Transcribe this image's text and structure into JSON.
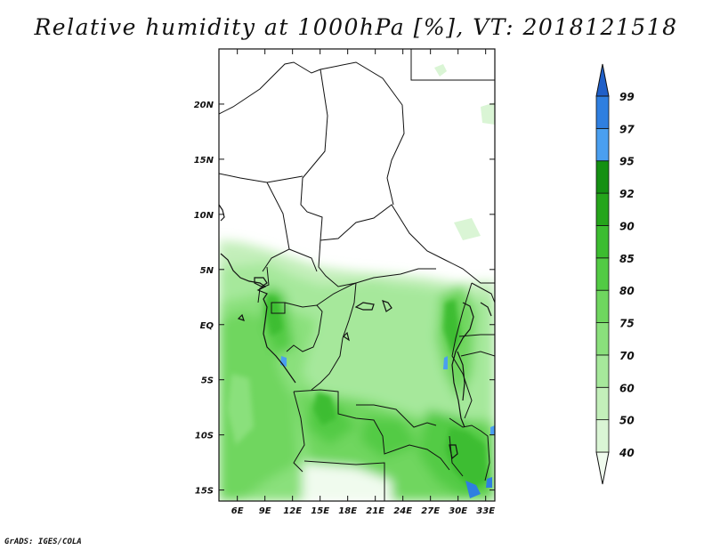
{
  "title": "Relative humidity at 1000hPa [%], VT: 2018121518",
  "credit": "GrADS: IGES/COLA",
  "map": {
    "variable": "Relative humidity",
    "level": "1000hPa",
    "units": "%",
    "valid_time": "2018121518",
    "lon_range": [
      4,
      34
    ],
    "lat_range": [
      -16,
      25
    ],
    "lon_ticks": [
      "6E",
      "9E",
      "12E",
      "15E",
      "18E",
      "21E",
      "24E",
      "27E",
      "30E",
      "33E"
    ],
    "lat_ticks": [
      "20N",
      "15N",
      "10N",
      "5N",
      "EQ",
      "5S",
      "10S",
      "15S"
    ]
  },
  "colorbar": {
    "levels": [
      "40",
      "50",
      "60",
      "70",
      "75",
      "80",
      "85",
      "90",
      "92",
      "95",
      "97",
      "99"
    ],
    "colors": [
      "#f0fbee",
      "#daf5d5",
      "#c3efba",
      "#a6e89b",
      "#8ae07c",
      "#6fd65f",
      "#52cb44",
      "#3cbd30",
      "#25a51b",
      "#149012",
      "#4a9ff0",
      "#2f7fe0",
      "#1f5fc8"
    ]
  }
}
